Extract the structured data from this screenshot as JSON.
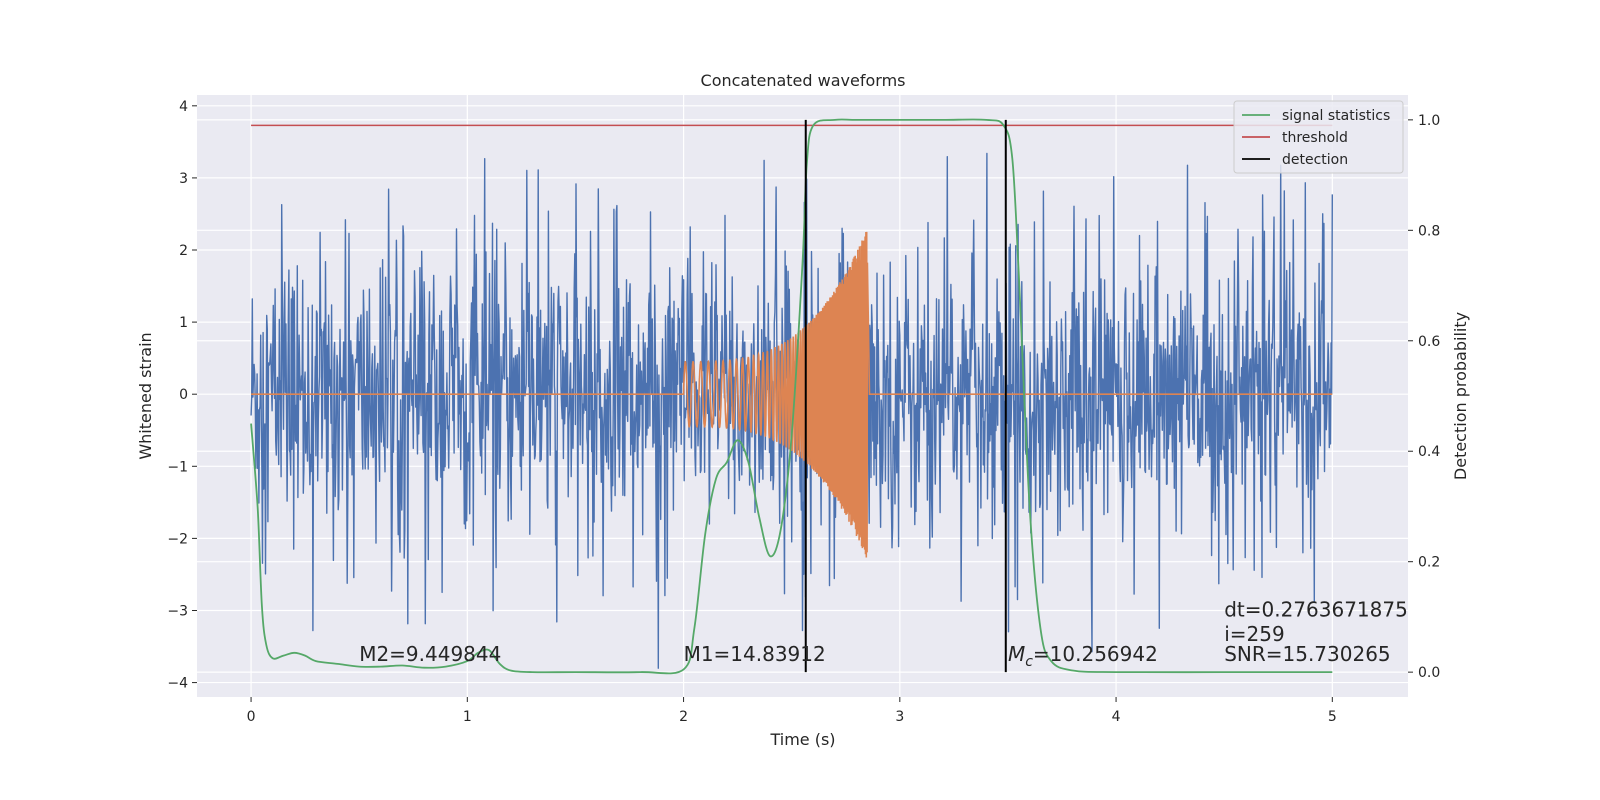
{
  "chart_data": {
    "type": "line",
    "title": "Concatenated waveforms",
    "xlabel": "Time (s)",
    "ylabel": "Whitened strain",
    "ylabel_right": "Detection probability",
    "xlim": [
      -0.25,
      5.35
    ],
    "ylim": [
      -4.2,
      4.15
    ],
    "ylim_right": [
      -0.045,
      1.045
    ],
    "x_ticks": [
      0,
      1,
      2,
      3,
      4,
      5
    ],
    "y_ticks": [
      -4,
      -3,
      -2,
      -1,
      0,
      1,
      2,
      3,
      4
    ],
    "y_ticks_right": [
      0.0,
      0.2,
      0.4,
      0.6,
      0.8,
      1.0
    ],
    "x_tick_labels": [
      "0",
      "1",
      "2",
      "3",
      "4",
      "5"
    ],
    "y_tick_labels": [
      "−4",
      "−3",
      "−2",
      "−1",
      "0",
      "1",
      "2",
      "3",
      "4"
    ],
    "y_tick_labels_right": [
      "0.0",
      "0.2",
      "0.4",
      "0.6",
      "0.8",
      "1.0"
    ],
    "grid": true,
    "legend_position": "top-right",
    "colors": {
      "noise": "#4c72b0",
      "template": "#dd8452",
      "signal_statistics": "#55a868",
      "threshold": "#c44e52",
      "detection": "#000000",
      "axes_bg": "#eaeaf2",
      "grid": "#ffffff"
    },
    "series": [
      {
        "name": "signal statistics",
        "axis": "right",
        "x": [
          0.0,
          0.03,
          0.05,
          0.07,
          0.1,
          0.15,
          0.2,
          0.25,
          0.3,
          0.4,
          0.5,
          0.6,
          0.7,
          0.8,
          0.9,
          1.0,
          1.05,
          1.1,
          1.15,
          1.2,
          1.3,
          1.5,
          1.8,
          2.0,
          2.05,
          2.1,
          2.15,
          2.2,
          2.25,
          2.3,
          2.35,
          2.4,
          2.45,
          2.5,
          2.55,
          2.57,
          2.6,
          2.7,
          2.8,
          3.0,
          3.2,
          3.4,
          3.48,
          3.52,
          3.55,
          3.6,
          3.65,
          3.7,
          3.8,
          4.0,
          4.5,
          5.0
        ],
        "y": [
          0.45,
          0.3,
          0.12,
          0.05,
          0.025,
          0.03,
          0.035,
          0.03,
          0.02,
          0.015,
          0.01,
          0.01,
          0.012,
          0.008,
          0.01,
          0.02,
          0.035,
          0.04,
          0.015,
          0.003,
          0.0,
          0.0,
          0.0,
          0.005,
          0.08,
          0.25,
          0.35,
          0.38,
          0.42,
          0.38,
          0.28,
          0.21,
          0.26,
          0.43,
          0.74,
          0.92,
          0.99,
          1.0,
          1.0,
          1.0,
          1.0,
          1.0,
          0.99,
          0.93,
          0.72,
          0.3,
          0.08,
          0.02,
          0.003,
          0.0,
          0.0,
          0.0
        ]
      },
      {
        "name": "threshold",
        "axis": "right",
        "x": [
          0.0,
          5.0
        ],
        "y": [
          0.99,
          0.99
        ]
      },
      {
        "name": "detection",
        "axis": "right",
        "type": "vlines",
        "x": [
          2.565,
          3.49
        ],
        "y": [
          0.0,
          1.0
        ]
      },
      {
        "name": "",
        "axis": "left",
        "description_kind": "noise",
        "x_range": [
          0.0,
          5.0
        ],
        "envelope": 2.3,
        "extreme": 3.8
      },
      {
        "name": "",
        "axis": "left",
        "description_kind": "chirp",
        "x_range": [
          2.0,
          2.85
        ],
        "amplitude_start": 0.45,
        "amplitude_end": 2.3
      }
    ],
    "annotations": [
      {
        "text": "M2=9.449844",
        "x": 0.5,
        "y": -3.7
      },
      {
        "text": "M1=14.83912",
        "x": 2.0,
        "y": -3.7
      },
      {
        "text_prefix": "M",
        "text_sub": "c",
        "text_suffix": "=10.256942",
        "x": 3.5,
        "y": -3.7
      },
      {
        "text": "dt=0.2763671875",
        "x": 4.5,
        "y": -3.08
      },
      {
        "text": " i=259",
        "x": 4.5,
        "y": -3.42
      },
      {
        "text": "SNR=15.730265",
        "x": 4.5,
        "y": -3.7
      }
    ],
    "legend": [
      "signal statistics",
      "threshold",
      "detection"
    ]
  }
}
